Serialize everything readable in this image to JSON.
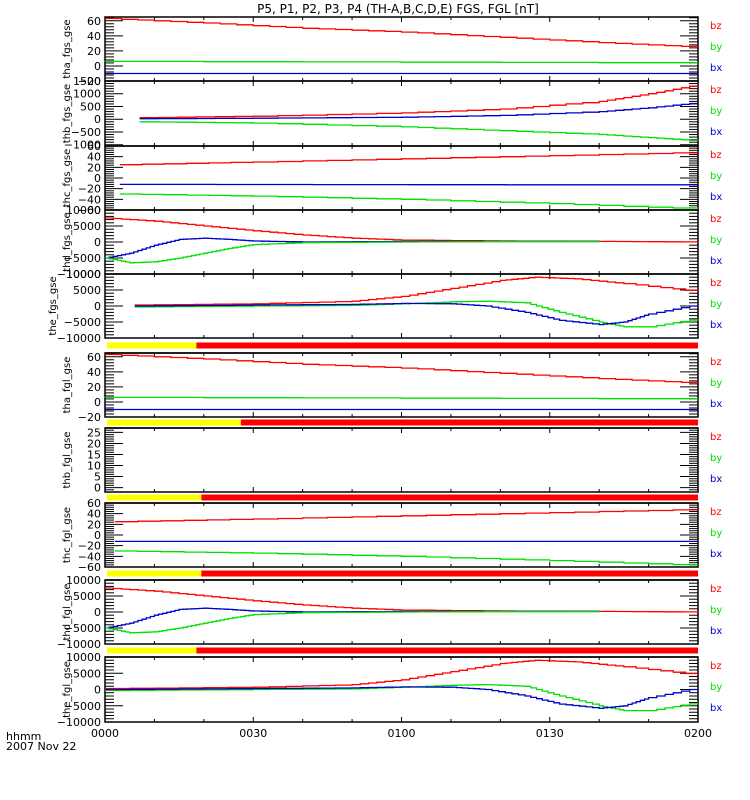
{
  "chart_data": {
    "type": "line",
    "title": "P5, P1, P2, P3, P4 (TH-A,B,C,D,E) FGS, FGL [nT]",
    "xlabel": "hhmm",
    "date_label": "2007 Nov 22",
    "x_range_minutes": [
      0,
      120
    ],
    "x_ticks": [
      {
        "minute": 0,
        "label": "0000"
      },
      {
        "minute": 30,
        "label": "0030"
      },
      {
        "minute": 60,
        "label": "0100"
      },
      {
        "minute": 90,
        "label": "0130"
      },
      {
        "minute": 120,
        "label": "0200"
      }
    ],
    "series_colors": {
      "bz": "#ff0000",
      "by": "#00e000",
      "bx": "#0000cc"
    },
    "legend": [
      "bz",
      "by",
      "bx"
    ],
    "legend_placement": "right",
    "bar_colors": {
      "yellow": "#ffff00",
      "red": "#ff0000"
    },
    "panels": [
      {
        "id": "tha_fgs_gse",
        "ylabel": "tha_fgs_gse",
        "ylim": [
          -20,
          65
        ],
        "yticks": [
          {
            "v": 60,
            "l": "60"
          },
          {
            "v": 40,
            "l": "40"
          },
          {
            "v": 20,
            "l": "20"
          },
          {
            "v": 0,
            "l": "0"
          },
          {
            "v": -20,
            "l": "-20"
          }
        ],
        "series": [
          {
            "name": "bz",
            "x": [
              0,
              20,
              40,
              60,
              80,
              100,
              120
            ],
            "y": [
              63,
              57,
              50,
              45,
              38,
              31,
              25
            ]
          },
          {
            "name": "by",
            "x": [
              0,
              120
            ],
            "y": [
              6,
              4
            ]
          },
          {
            "name": "bx",
            "x": [
              0,
              120
            ],
            "y": [
              -10,
              -10
            ]
          }
        ],
        "bar": null
      },
      {
        "id": "thb_fgs_gse",
        "ylabel": "thb_fgs_gse",
        "ylim": [
          -1050,
          1500
        ],
        "yticks": [
          {
            "v": 1500,
            "l": "1500"
          },
          {
            "v": 1000,
            "l": "1000"
          },
          {
            "v": 500,
            "l": "500"
          },
          {
            "v": 0,
            "l": "0"
          },
          {
            "v": -500,
            "l": "-500"
          },
          {
            "v": -1000,
            "l": "-1000"
          }
        ],
        "series": [
          {
            "name": "bz",
            "x": [
              7,
              30,
              60,
              80,
              100,
              110,
              120
            ],
            "y": [
              60,
              120,
              250,
              400,
              700,
              1000,
              1350
            ]
          },
          {
            "name": "bx",
            "x": [
              7,
              30,
              60,
              80,
              100,
              110,
              120
            ],
            "y": [
              20,
              40,
              80,
              150,
              300,
              450,
              650
            ]
          },
          {
            "name": "by",
            "x": [
              7,
              30,
              60,
              80,
              100,
              110,
              120
            ],
            "y": [
              -100,
              -150,
              -300,
              -450,
              -600,
              -720,
              -850
            ]
          }
        ],
        "bar": null
      },
      {
        "id": "thc_fgs_gse",
        "ylabel": "thc_fgs_gse",
        "ylim": [
          -60,
          60
        ],
        "yticks": [
          {
            "v": 60,
            "l": "60"
          },
          {
            "v": 40,
            "l": "40"
          },
          {
            "v": 20,
            "l": "20"
          },
          {
            "v": 0,
            "l": "0"
          },
          {
            "v": -20,
            "l": "-20"
          },
          {
            "v": -40,
            "l": "-40"
          },
          {
            "v": -60,
            "l": "-60"
          }
        ],
        "series": [
          {
            "name": "bz",
            "x": [
              3,
              30,
              60,
              90,
              120
            ],
            "y": [
              25,
              30,
              36,
              42,
              48
            ]
          },
          {
            "name": "bx",
            "x": [
              3,
              120
            ],
            "y": [
              -12,
              -13
            ]
          },
          {
            "name": "by",
            "x": [
              3,
              30,
              60,
              90,
              120
            ],
            "y": [
              -30,
              -34,
              -40,
              -48,
              -58
            ]
          }
        ],
        "bar": null
      },
      {
        "id": "thd_fgs_gse",
        "ylabel": "thd_fgs_gse",
        "ylim": [
          -10000,
          10000
        ],
        "yticks": [
          {
            "v": 10000,
            "l": "10000"
          },
          {
            "v": 5000,
            "l": "5000"
          },
          {
            "v": 0,
            "l": "0"
          },
          {
            "v": -5000,
            "l": "-5000"
          },
          {
            "v": -10000,
            "l": "-10000"
          }
        ],
        "series": [
          {
            "name": "bz",
            "x": [
              0,
              10,
              20,
              30,
              40,
              50,
              60,
              80,
              100,
              120
            ],
            "y": [
              7500,
              6500,
              5000,
              3500,
              2200,
              1200,
              600,
              300,
              200,
              0
            ]
          },
          {
            "name": "bx",
            "x": [
              0,
              5,
              10,
              15,
              20,
              25,
              30,
              40,
              60,
              80,
              100
            ],
            "y": [
              -5000,
              -3500,
              -1000,
              800,
              1200,
              800,
              300,
              0,
              200,
              200,
              200
            ]
          },
          {
            "name": "by",
            "x": [
              0,
              5,
              10,
              15,
              20,
              25,
              30,
              40,
              60,
              80,
              100
            ],
            "y": [
              -5000,
              -6500,
              -6200,
              -5000,
              -3500,
              -2000,
              -800,
              -200,
              0,
              100,
              100
            ]
          }
        ],
        "bar": null
      },
      {
        "id": "the_fgs_gse",
        "ylabel": "the_fgs_gse",
        "ylim": [
          -10000,
          10000
        ],
        "yticks": [
          {
            "v": 10000,
            "l": "10000"
          },
          {
            "v": 5000,
            "l": "5000"
          },
          {
            "v": 0,
            "l": "0"
          },
          {
            "v": -5000,
            "l": "-5000"
          },
          {
            "v": -10000,
            "l": "-10000"
          }
        ],
        "series": [
          {
            "name": "bz",
            "x": [
              6,
              30,
              50,
              60,
              70,
              80,
              87,
              95,
              105,
              120
            ],
            "y": [
              300,
              700,
              1500,
              3000,
              5500,
              8000,
              9000,
              8500,
              7000,
              4500
            ]
          },
          {
            "name": "by",
            "x": [
              6,
              30,
              50,
              60,
              70,
              77,
              85,
              92,
              100,
              105,
              110,
              120
            ],
            "y": [
              -300,
              0,
              200,
              700,
              1300,
              1500,
              1000,
              -2000,
              -5000,
              -6500,
              -6500,
              -4000
            ]
          },
          {
            "name": "bx",
            "x": [
              6,
              30,
              50,
              60,
              70,
              77,
              85,
              92,
              100,
              105,
              110,
              120
            ],
            "y": [
              0,
              300,
              500,
              800,
              700,
              0,
              -2000,
              -4500,
              -5800,
              -5000,
              -2500,
              500
            ]
          }
        ],
        "bar": {
          "yellow_until": 18.5
        }
      },
      {
        "id": "tha_fgl_gse",
        "ylabel": "tha_fgl_gse",
        "ylim": [
          -20,
          65
        ],
        "yticks": [
          {
            "v": 60,
            "l": "60"
          },
          {
            "v": 40,
            "l": "40"
          },
          {
            "v": 20,
            "l": "20"
          },
          {
            "v": 0,
            "l": "0"
          },
          {
            "v": -20,
            "l": "-20"
          }
        ],
        "series": [
          {
            "name": "bz",
            "x": [
              0,
              20,
              40,
              60,
              80,
              100,
              120
            ],
            "y": [
              63,
              57,
              50,
              45,
              38,
              31,
              25
            ]
          },
          {
            "name": "by",
            "x": [
              0,
              120
            ],
            "y": [
              6,
              4
            ]
          },
          {
            "name": "bx",
            "x": [
              0,
              120
            ],
            "y": [
              -10,
              -10
            ]
          }
        ],
        "bar": {
          "yellow_until": 27.5
        }
      },
      {
        "id": "thb_fgl_gse",
        "ylabel": "thb_fgl_gse",
        "ylim": [
          -2,
          27
        ],
        "yticks": [
          {
            "v": 25,
            "l": "25"
          },
          {
            "v": 20,
            "l": "20"
          },
          {
            "v": 15,
            "l": "15"
          },
          {
            "v": 10,
            "l": "10"
          },
          {
            "v": 5,
            "l": "5"
          },
          {
            "v": 0,
            "l": "0"
          }
        ],
        "series": [],
        "bar": {
          "yellow_until": 19.5
        }
      },
      {
        "id": "thc_fgl_gse",
        "ylabel": "thc_fgl_gse",
        "ylim": [
          -60,
          60
        ],
        "yticks": [
          {
            "v": 60,
            "l": "60"
          },
          {
            "v": 40,
            "l": "40"
          },
          {
            "v": 20,
            "l": "20"
          },
          {
            "v": 0,
            "l": "0"
          },
          {
            "v": -20,
            "l": "-20"
          },
          {
            "v": -40,
            "l": "-40"
          },
          {
            "v": -60,
            "l": "-60"
          }
        ],
        "series": [
          {
            "name": "bz",
            "x": [
              2,
              30,
              60,
              90,
              120
            ],
            "y": [
              25,
              30,
              36,
              42,
              48
            ]
          },
          {
            "name": "bx",
            "x": [
              2,
              120
            ],
            "y": [
              -12,
              -12
            ]
          },
          {
            "name": "by",
            "x": [
              2,
              30,
              60,
              90,
              120
            ],
            "y": [
              -30,
              -34,
              -40,
              -48,
              -57
            ]
          }
        ],
        "bar": {
          "yellow_until": 19.5
        }
      },
      {
        "id": "thd_fgl_gse",
        "ylabel": "thd_fgl_gse",
        "ylim": [
          -10000,
          10000
        ],
        "yticks": [
          {
            "v": 10000,
            "l": "10000"
          },
          {
            "v": 5000,
            "l": "5000"
          },
          {
            "v": 0,
            "l": "0"
          },
          {
            "v": -5000,
            "l": "-5000"
          },
          {
            "v": -10000,
            "l": "-10000"
          }
        ],
        "series": [
          {
            "name": "bz",
            "x": [
              0,
              10,
              20,
              30,
              40,
              50,
              60,
              80,
              100,
              120
            ],
            "y": [
              7500,
              6500,
              5000,
              3500,
              2200,
              1200,
              600,
              300,
              200,
              0
            ]
          },
          {
            "name": "bx",
            "x": [
              0,
              5,
              10,
              15,
              20,
              25,
              30,
              40,
              60,
              80,
              100
            ],
            "y": [
              -5000,
              -3500,
              -1000,
              800,
              1200,
              800,
              300,
              0,
              200,
              200,
              200
            ]
          },
          {
            "name": "by",
            "x": [
              0,
              5,
              10,
              15,
              20,
              25,
              30,
              40,
              60,
              80,
              100
            ],
            "y": [
              -5000,
              -6500,
              -6200,
              -5000,
              -3500,
              -2000,
              -800,
              -200,
              0,
              100,
              100
            ]
          }
        ],
        "bar": {
          "yellow_until": 18.5
        }
      },
      {
        "id": "the_fgl_gse",
        "ylabel": "the_fgl_gse",
        "ylim": [
          -10000,
          10000
        ],
        "yticks": [
          {
            "v": 10000,
            "l": "10000"
          },
          {
            "v": 5000,
            "l": "5000"
          },
          {
            "v": 0,
            "l": "0"
          },
          {
            "v": -5000,
            "l": "-5000"
          },
          {
            "v": -10000,
            "l": "-10000"
          }
        ],
        "series": [
          {
            "name": "bz",
            "x": [
              0,
              30,
              50,
              60,
              70,
              80,
              87,
              95,
              105,
              120
            ],
            "y": [
              300,
              700,
              1500,
              3000,
              5500,
              8000,
              9000,
              8500,
              7000,
              4500
            ]
          },
          {
            "name": "by",
            "x": [
              0,
              30,
              50,
              60,
              70,
              77,
              85,
              92,
              100,
              105,
              110,
              120
            ],
            "y": [
              -300,
              0,
              200,
              700,
              1300,
              1500,
              1000,
              -2000,
              -5000,
              -6500,
              -6500,
              -4000
            ]
          },
          {
            "name": "bx",
            "x": [
              0,
              30,
              50,
              60,
              70,
              77,
              85,
              92,
              100,
              105,
              110,
              120
            ],
            "y": [
              0,
              300,
              500,
              800,
              700,
              0,
              -2000,
              -4500,
              -5800,
              -5000,
              -2500,
              500
            ]
          }
        ],
        "bar": null
      }
    ]
  }
}
